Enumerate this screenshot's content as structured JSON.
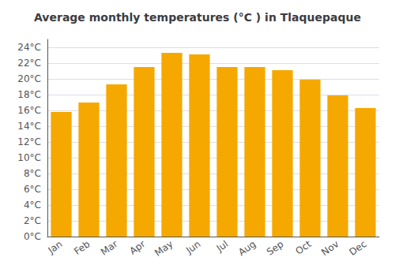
{
  "chart_data": {
    "type": "bar",
    "title": "Average monthly temperatures (°C ) in Tlaquepaque",
    "categories": [
      "Jan",
      "Feb",
      "Mar",
      "Apr",
      "May",
      "Jun",
      "Jul",
      "Aug",
      "Sep",
      "Oct",
      "Nov",
      "Dec"
    ],
    "values": [
      15.8,
      17.0,
      19.3,
      21.5,
      23.3,
      23.1,
      21.5,
      21.5,
      21.1,
      19.9,
      17.9,
      16.3
    ],
    "color": "#F5A800",
    "ylim": [
      0,
      25
    ],
    "yticks": [
      {
        "value": 0,
        "label": "0°C"
      },
      {
        "value": 2,
        "label": "2°C"
      },
      {
        "value": 4,
        "label": "4°C"
      },
      {
        "value": 6,
        "label": "6°C"
      },
      {
        "value": 8,
        "label": "8°C"
      },
      {
        "value": 10,
        "label": "10°C"
      },
      {
        "value": 12,
        "label": "12°C"
      },
      {
        "value": 14,
        "label": "14°C"
      },
      {
        "value": 16,
        "label": "16°C"
      },
      {
        "value": 18,
        "label": "18°C"
      },
      {
        "value": 20,
        "label": "20°C"
      },
      {
        "value": 22,
        "label": "22°C"
      },
      {
        "value": 24,
        "label": "24°C"
      }
    ],
    "grid": true
  }
}
